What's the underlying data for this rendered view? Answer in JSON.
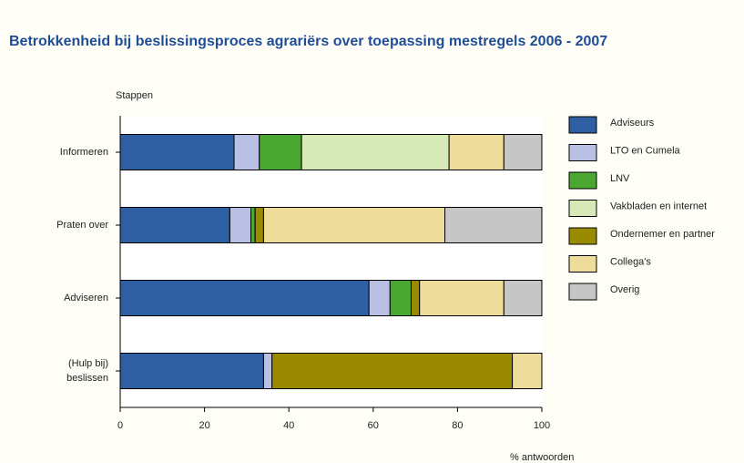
{
  "chart_data": {
    "type": "stacked-barh",
    "title": "Betrokkenheid bij beslissingsproces agrariërs over toepassing mestregels 2006 - 2007",
    "ylabel": "Stappen",
    "xlabel": "% antwoorden",
    "categories": [
      "Informeren",
      "Praten over",
      "Adviseren",
      "(Hulp bij)\nbeslissen"
    ],
    "series": [
      {
        "name": "Adviseurs",
        "color": "#2e5fa3",
        "values": [
          27,
          26,
          59,
          34
        ]
      },
      {
        "name": "LTO en Cumela",
        "color": "#b9c0e3",
        "values": [
          6,
          5,
          5,
          2
        ]
      },
      {
        "name": "LNV",
        "color": "#4aa832",
        "values": [
          10,
          1,
          5,
          0
        ]
      },
      {
        "name": "Vakbladen en internet",
        "color": "#d6e9b7",
        "values": [
          35,
          0,
          0,
          0
        ]
      },
      {
        "name": "Ondernemer en partner",
        "color": "#9a8a00",
        "values": [
          0,
          2,
          2,
          57
        ]
      },
      {
        "name": "Collega's",
        "color": "#eedc9a",
        "values": [
          13,
          43,
          20,
          7
        ]
      },
      {
        "name": "Overig",
        "color": "#c6c6c6",
        "values": [
          9,
          23,
          9,
          0
        ]
      }
    ],
    "xlim": [
      0,
      100
    ],
    "xticks": [
      0,
      20,
      40,
      60,
      80,
      100
    ],
    "legend": "right"
  }
}
